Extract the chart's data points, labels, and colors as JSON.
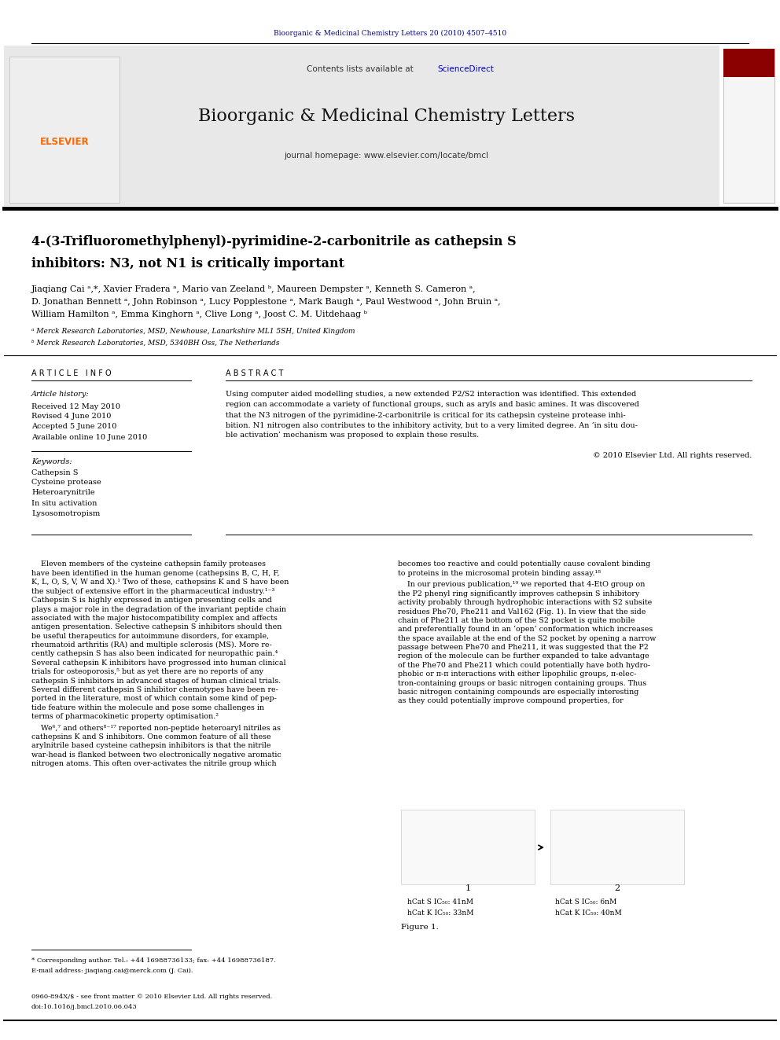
{
  "page_width": 9.92,
  "page_height": 13.23,
  "background_color": "#ffffff",
  "journal_ref_text": "Bioorganic & Medicinal Chemistry Letters 20 (2010) 4507–4510",
  "journal_ref_color": "#00008B",
  "header_bg_color": "#e8e8e8",
  "contents_text": "Contents lists available at ",
  "sciencedirect_text": "ScienceDirect",
  "sciencedirect_color": "#0000cc",
  "journal_title": "Bioorganic & Medicinal Chemistry Letters",
  "journal_homepage": "journal homepage: www.elsevier.com/locate/bmcl",
  "elsevier_color": "#FF6600",
  "article_title_line1": "4-(3-Trifluoromethylphenyl)-pyrimidine-2-carbonitrile as cathepsin S",
  "article_title_line2": "inhibitors: N3, not N1 is critically important",
  "authors": "Jiaqiang Cai ᵃ,*, Xavier Fradera ᵃ, Mario van Zeeland ᵇ, Maureen Dempster ᵃ, Kenneth S. Cameron ᵃ,",
  "authors2": "D. Jonathan Bennett ᵃ, John Robinson ᵃ, Lucy Popplestone ᵃ, Mark Baugh ᵃ, Paul Westwood ᵃ, John Bruin ᵃ,",
  "authors3": "William Hamilton ᵃ, Emma Kinghorn ᵃ, Clive Long ᵃ, Joost C. M. Uitdehaag ᵇ",
  "affil1": "ᵃ Merck Research Laboratories, MSD, Newhouse, Lanarkshire ML1 5SH, United Kingdom",
  "affil2": "ᵇ Merck Research Laboratories, MSD, 5340BH Oss, The Netherlands",
  "article_info_header": "A R T I C L E   I N F O",
  "abstract_header": "A B S T R A C T",
  "article_history_label": "Article history:",
  "received": "Received 12 May 2010",
  "revised": "Revised 4 June 2010",
  "accepted": "Accepted 5 June 2010",
  "available": "Available online 10 June 2010",
  "keywords_label": "Keywords:",
  "keywords": [
    "Cathepsin S",
    "Cysteine protease",
    "Heteroarynitrile",
    "In situ activation",
    "Lysosomotropism"
  ],
  "abstract_lines": [
    "Using computer aided modelling studies, a new extended P2/S2 interaction was identified. This extended",
    "region can accommodate a variety of functional groups, such as aryls and basic amines. It was discovered",
    "that the N3 nitrogen of the pyrimidine-2-carbonitrile is critical for its cathepsin cysteine protease inhi-",
    "bition. N1 nitrogen also contributes to the inhibitory activity, but to a very limited degree. An ‘in situ dou-",
    "ble activation’ mechanism was proposed to explain these results."
  ],
  "copyright": "© 2010 Elsevier Ltd. All rights reserved.",
  "body1_lines": [
    "    Eleven members of the cysteine cathepsin family proteases",
    "have been identified in the human genome (cathepsins B, C, H, F,",
    "K, L, O, S, V, W and X).¹ Two of these, cathepsins K and S have been",
    "the subject of extensive effort in the pharmaceutical industry.¹⁻³",
    "Cathepsin S is highly expressed in antigen presenting cells and",
    "plays a major role in the degradation of the invariant peptide chain",
    "associated with the major histocompatibility complex and affects",
    "antigen presentation. Selective cathepsin S inhibitors should then",
    "be useful therapeutics for autoimmune disorders, for example,",
    "rheumatoid arthritis (RA) and multiple sclerosis (MS). More re-",
    "cently cathepsin S has also been indicated for neuropathic pain.⁴",
    "Several cathepsin K inhibitors have progressed into human clinical",
    "trials for osteoporosis,⁵ but as yet there are no reports of any",
    "cathepsin S inhibitors in advanced stages of human clinical trials.",
    "Several different cathepsin S inhibitor chemotypes have been re-",
    "ported in the literature, most of which contain some kind of pep-",
    "tide feature within the molecule and pose some challenges in",
    "terms of pharmacokinetic property optimisation.²"
  ],
  "body1b_lines": [
    "    We⁶,⁷ and others⁸⁻¹⁷ reported non-peptide heteroaryl nitriles as",
    "cathepsins K and S inhibitors. One common feature of all these",
    "arylnitrile based cysteine cathepsin inhibitors is that the nitrile",
    "war-head is flanked between two electronically negative aromatic",
    "nitrogen atoms. This often over-activates the nitrile group which"
  ],
  "body2_lines": [
    "becomes too reactive and could potentially cause covalent binding",
    "to proteins in the microsomal protein binding assay.¹⁸"
  ],
  "body2b_lines": [
    "    In our previous publication,¹⁹ we reported that 4-EtO group on",
    "the P2 phenyl ring significantly improves cathepsin S inhibitory",
    "activity probably through hydrophobic interactions with S2 subsite",
    "residues Phe70, Phe211 and Val162 (Fig. 1). In view that the side",
    "chain of Phe211 at the bottom of the S2 pocket is quite mobile",
    "and preferentially found in an ‘open’ conformation which increases",
    "the space available at the end of the S2 pocket by opening a narrow",
    "passage between Phe70 and Phe211, it was suggested that the P2",
    "region of the molecule can be further expanded to take advantage",
    "of the Phe70 and Phe211 which could potentially have both hydro-",
    "phobic or π-π interactions with either lipophilic groups, π-elec-",
    "tron-containing groups or basic nitrogen containing groups. Thus",
    "basic nitrogen containing compounds are especially interesting",
    "as they could potentially improve compound properties, for"
  ],
  "footnote_star": "* Corresponding author. Tel.: +44 16988736133; fax: +44 16988736187.",
  "footnote_email": "E-mail address: jiaqiang.cai@merck.com (J. Cai).",
  "bottom_ref1": "0960-894X/$ - see front matter © 2010 Elsevier Ltd. All rights reserved.",
  "bottom_ref2": "doi:10.1016/j.bmcl.2010.06.043",
  "fig1_label": "Figure 1.",
  "fig_data1a": "hCat S IC₅₀: 41nM",
  "fig_data1b": "hCat K IC₅₀: 33nM",
  "fig_data2a": "hCat S IC₅₀: 6nM",
  "fig_data2b": "hCat K IC₅₀: 40nM",
  "dark_red_color": "#8B0000"
}
